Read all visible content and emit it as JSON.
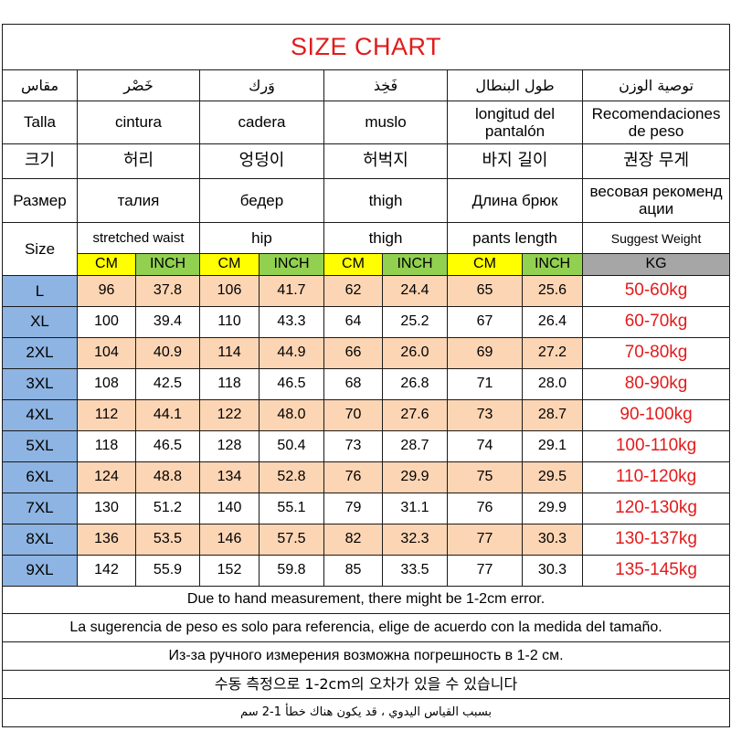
{
  "title": "SIZE CHART",
  "header_rows": [
    {
      "lang": "ar",
      "cells": [
        "مقاس",
        "خَصْر",
        "وَرك",
        "فَخِذ",
        "طول البنطال",
        "توصية الوزن"
      ]
    },
    {
      "lang": "es",
      "cells": [
        "Talla",
        "cintura",
        "cadera",
        "muslo",
        "longitud del pantalón",
        "Recomendaciones de peso"
      ]
    },
    {
      "lang": "ko",
      "cells": [
        "크기",
        "허리",
        "엉덩이",
        "허벅지",
        "바지 길이",
        "권장 무게"
      ]
    },
    {
      "lang": "ru",
      "cells": [
        "Размер",
        "талия",
        "бедер",
        "thigh",
        "Длина брюк",
        "весовая рекоменд ации"
      ]
    },
    {
      "lang": "en",
      "cells": [
        "Size",
        "stretched waist",
        "hip",
        "thigh",
        "pants length",
        "Suggest Weight"
      ]
    }
  ],
  "units": [
    "CM",
    "INCH",
    "CM",
    "INCH",
    "CM",
    "INCH",
    "CM",
    "INCH",
    "KG"
  ],
  "rows": [
    {
      "size": "L",
      "values": [
        "96",
        "37.8",
        "106",
        "41.7",
        "62",
        "24.4",
        "65",
        "25.6"
      ],
      "weight": "50-60kg"
    },
    {
      "size": "XL",
      "values": [
        "100",
        "39.4",
        "110",
        "43.3",
        "64",
        "25.2",
        "67",
        "26.4"
      ],
      "weight": "60-70kg"
    },
    {
      "size": "2XL",
      "values": [
        "104",
        "40.9",
        "114",
        "44.9",
        "66",
        "26.0",
        "69",
        "27.2"
      ],
      "weight": "70-80kg"
    },
    {
      "size": "3XL",
      "values": [
        "108",
        "42.5",
        "118",
        "46.5",
        "68",
        "26.8",
        "71",
        "28.0"
      ],
      "weight": "80-90kg"
    },
    {
      "size": "4XL",
      "values": [
        "112",
        "44.1",
        "122",
        "48.0",
        "70",
        "27.6",
        "73",
        "28.7"
      ],
      "weight": "90-100kg"
    },
    {
      "size": "5XL",
      "values": [
        "118",
        "46.5",
        "128",
        "50.4",
        "73",
        "28.7",
        "74",
        "29.1"
      ],
      "weight": "100-110kg"
    },
    {
      "size": "6XL",
      "values": [
        "124",
        "48.8",
        "134",
        "52.8",
        "76",
        "29.9",
        "75",
        "29.5"
      ],
      "weight": "110-120kg"
    },
    {
      "size": "7XL",
      "values": [
        "130",
        "51.2",
        "140",
        "55.1",
        "79",
        "31.1",
        "76",
        "29.9"
      ],
      "weight": "120-130kg"
    },
    {
      "size": "8XL",
      "values": [
        "136",
        "53.5",
        "146",
        "57.5",
        "82",
        "32.3",
        "77",
        "30.3"
      ],
      "weight": "130-137kg"
    },
    {
      "size": "9XL",
      "values": [
        "142",
        "55.9",
        "152",
        "59.8",
        "85",
        "33.5",
        "77",
        "30.3"
      ],
      "weight": "135-145kg"
    }
  ],
  "notes": [
    {
      "lang": "en",
      "text": "Due to hand measurement, there might be 1-2cm error."
    },
    {
      "lang": "es",
      "text": "La sugerencia de peso es solo para referencia, elige de acuerdo con la medida del tamaño."
    },
    {
      "lang": "ru",
      "text": "Из-за ручного измерения возможна погрешность в 1-2 см."
    },
    {
      "lang": "ko",
      "text": "수동 측정으로 1-2cm의 오차가 있을 수 있습니다"
    },
    {
      "lang": "ar",
      "text": "بسبب القياس اليدوي ، قد يكون هناك خطأ 1-2 سم"
    }
  ],
  "colors": {
    "title": "#e21b1b",
    "weight_text": "#e21b1b",
    "cm_header": "#ffff00",
    "inch_header": "#92d050",
    "kg_header": "#a6a6a6",
    "size_column": "#8db4e2",
    "shaded_row": "#fcd5b4"
  }
}
